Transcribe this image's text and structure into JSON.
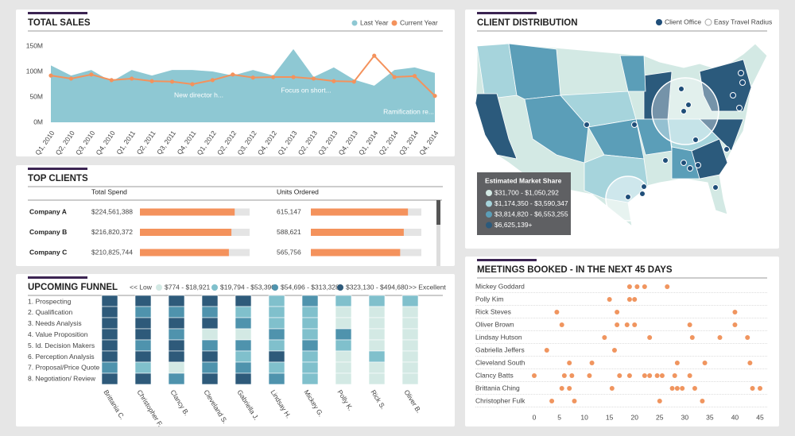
{
  "chart_data": [
    {
      "type": "area_line",
      "title": "TOTAL SALES",
      "categories": [
        "Q1, 2010",
        "Q2, 2010",
        "Q3, 2010",
        "Q4, 2010",
        "Q1, 2011",
        "Q2, 2011",
        "Q3, 2011",
        "Q4, 2011",
        "Q1, 2012",
        "Q2, 2012",
        "Q3, 2012",
        "Q4, 2012",
        "Q1, 2013",
        "Q2, 2013",
        "Q3, 2013",
        "Q4, 2013",
        "Q1, 2014",
        "Q2, 2014",
        "Q3, 2014",
        "Q4, 2014"
      ],
      "series": [
        {
          "name": "Last Year",
          "kind": "area",
          "color": "#8ec8d3",
          "values": [
            112,
            92,
            103,
            80,
            103,
            92,
            103,
            103,
            100,
            92,
            103,
            92,
            144,
            89,
            108,
            84,
            72,
            103,
            108,
            97
          ]
        },
        {
          "name": "Current Year",
          "kind": "line",
          "color": "#f4925c",
          "values": [
            92,
            86,
            94,
            83,
            86,
            81,
            80,
            75,
            83,
            94,
            88,
            89,
            89,
            86,
            81,
            80,
            131,
            89,
            91,
            52
          ]
        }
      ],
      "ylim": [
        0,
        150
      ],
      "yticks": [
        {
          "value": 0,
          "label": "0M"
        },
        {
          "value": 50,
          "label": "50M"
        },
        {
          "value": 100,
          "label": "100M"
        },
        {
          "value": 150,
          "label": "150M"
        }
      ],
      "annotations": [
        "New director h...",
        "Focus on short...",
        "Ramification re..."
      ]
    },
    {
      "type": "bar",
      "title": "TOP CLIENTS",
      "categories": [
        "Company A",
        "Company B",
        "Company C"
      ],
      "series": [
        {
          "name": "Total Spend",
          "color": "#f4925c",
          "xlim": [
            0,
            260000000
          ],
          "values": [
            224561388,
            216820372,
            210825744
          ],
          "value_labels": [
            "$224,561,388",
            "$216,820,372",
            "$210,825,744"
          ]
        },
        {
          "name": "Units Ordered",
          "color": "#f4925c",
          "xlim": [
            0,
            700000
          ],
          "values": [
            615147,
            588621,
            565756
          ],
          "value_labels": [
            "615,147",
            "588,621",
            "565,756"
          ]
        }
      ]
    },
    {
      "type": "heatmap",
      "title": "UPCOMING FUNNEL",
      "low_label": "<< Low",
      "high_label": ">> Excellent",
      "classes": [
        {
          "label": "$774 - $18,921",
          "color": "#d3e9e4"
        },
        {
          "label": "$19,794 - $53,390",
          "color": "#80c0cc"
        },
        {
          "label": "$54,696 - $313,328",
          "color": "#4f93ad"
        },
        {
          "label": "$323,130 - $494,680",
          "color": "#2e5a7a"
        }
      ],
      "rows": [
        "1. Prospecting",
        "2. Qualification",
        "3. Needs Analysis",
        "4. Value Proposition",
        "5. Id. Decision Makers",
        "6. Perception Analysis",
        "7. Proposal/Price Quote",
        "8. Negotiation/ Review"
      ],
      "categories": [
        "Brittania C.",
        "Christopher F.",
        "Clancy B.",
        "Cleveland S.",
        "Gabriella J.",
        "Lindsay H.",
        "Mickey G.",
        "Polly K.",
        "Rick S.",
        "Oliver B."
      ],
      "cells": [
        [
          3,
          3,
          3,
          3,
          3,
          3,
          2,
          3
        ],
        [
          3,
          2,
          3,
          3,
          2,
          3,
          1,
          3
        ],
        [
          3,
          2,
          3,
          2,
          3,
          3,
          0,
          2
        ],
        [
          3,
          2,
          3,
          0,
          2,
          3,
          2,
          3
        ],
        [
          3,
          1,
          2,
          0,
          2,
          1,
          2,
          3
        ],
        [
          1,
          1,
          1,
          2,
          1,
          3,
          1,
          2
        ],
        [
          2,
          1,
          1,
          1,
          2,
          1,
          1,
          1
        ],
        [
          1,
          0,
          0,
          2,
          1,
          0,
          0,
          0
        ],
        [
          1,
          0,
          0,
          0,
          0,
          1,
          0,
          0
        ],
        [
          1,
          0,
          0,
          0,
          0,
          0,
          0,
          0
        ]
      ]
    },
    {
      "type": "map",
      "title": "CLIENT DISTRIBUTION",
      "legend": [
        "Client Office",
        "Easy Travel Radius"
      ],
      "legend_title": "Estimated Market Share",
      "classes": [
        {
          "label": "$31,700 - $1,050,292",
          "color": "#d3e9e4"
        },
        {
          "label": "$1,174,350 - $3,590,347",
          "color": "#a6d4dc"
        },
        {
          "label": "$3,814,820 - $6,553,255",
          "color": "#5b9eb8"
        },
        {
          "label": "$6,625,139+",
          "color": "#2b5a7c"
        }
      ]
    },
    {
      "type": "dot_plot",
      "title": "MEETINGS BOOKED -  IN THE NEXT 45 DAYS",
      "color": "#f0955f",
      "xlim": [
        0,
        45
      ],
      "xticks": [
        0,
        5,
        10,
        15,
        20,
        25,
        30,
        35,
        40,
        45
      ],
      "series": [
        {
          "name": "Mickey Goddard",
          "values": [
            19,
            20.5,
            22,
            26.5
          ]
        },
        {
          "name": "Polly Kim",
          "values": [
            15,
            19,
            20
          ]
        },
        {
          "name": "Rick Steves",
          "values": [
            4.5,
            16.5,
            40
          ]
        },
        {
          "name": "Oliver Brown",
          "values": [
            5.5,
            16.5,
            18.5,
            20,
            31,
            40
          ]
        },
        {
          "name": "Lindsay Hutson",
          "values": [
            14,
            23,
            31.5,
            37,
            42.5
          ]
        },
        {
          "name": "Gabriella Jeffers",
          "values": [
            2.5,
            16
          ]
        },
        {
          "name": "Cleveland South",
          "values": [
            7,
            11.5,
            28.5,
            34,
            43
          ]
        },
        {
          "name": "Clancy Batts",
          "values": [
            0,
            6,
            7.5,
            11,
            17,
            19,
            22,
            23,
            24.5,
            25.5,
            28,
            31
          ]
        },
        {
          "name": "Brittania Ching",
          "values": [
            5.5,
            7,
            15.5,
            27.5,
            28.5,
            29.5,
            32,
            43.5,
            45
          ]
        },
        {
          "name": "Christopher Fulk",
          "values": [
            3.5,
            8,
            25,
            33.5
          ]
        }
      ]
    }
  ]
}
